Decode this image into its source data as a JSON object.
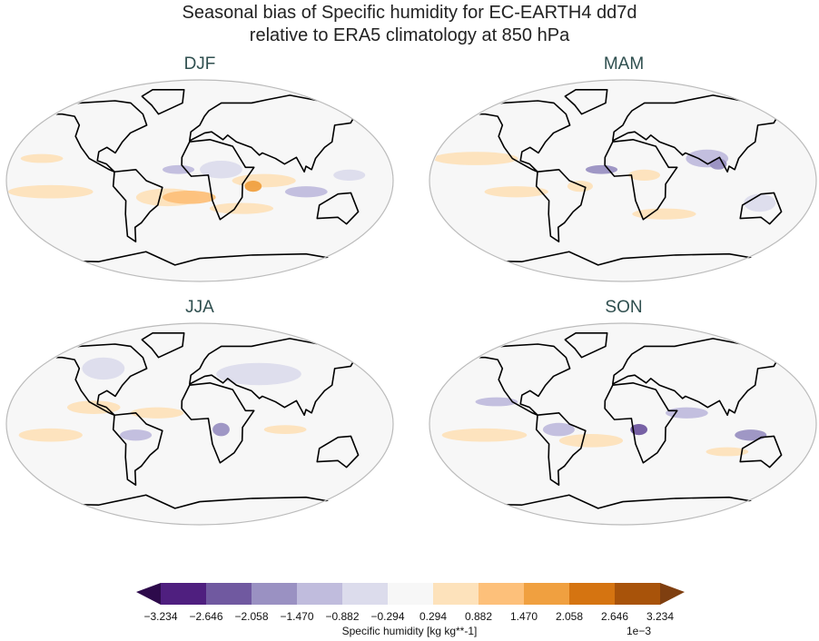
{
  "title_line1": "Seasonal bias of Specific humidity for EC-EARTH4 dd7d",
  "title_line2": "relative to ERA5 climatology at 850 hPa",
  "chart_data": {
    "type": "heatmap",
    "panels": [
      "DJF",
      "MAM",
      "JJA",
      "SON"
    ],
    "projection": "Robinson",
    "colorbar": {
      "label": "Specific humidity [kg kg**-1]",
      "scale_label": "1e−3",
      "ticks": [
        "−3.234",
        "−2.646",
        "−2.058",
        "−1.470",
        "−0.882",
        "−0.294",
        "0.294",
        "0.882",
        "1.470",
        "2.058",
        "2.646",
        "3.234"
      ],
      "levels": [
        -3.234,
        -2.646,
        -2.058,
        -1.47,
        -0.882,
        -0.294,
        0.294,
        0.882,
        1.47,
        2.058,
        2.646,
        3.234
      ],
      "extend": "both",
      "colormap": "PuOr_r",
      "colors": [
        "#2d0a4b",
        "#4f1f7f",
        "#7059a0",
        "#9a91c2",
        "#c0bcdd",
        "#dcdcec",
        "#f7f7f7",
        "#fde2bb",
        "#fdc07a",
        "#f0a040",
        "#d57411",
        "#a8530a",
        "#7f3f10"
      ]
    }
  }
}
